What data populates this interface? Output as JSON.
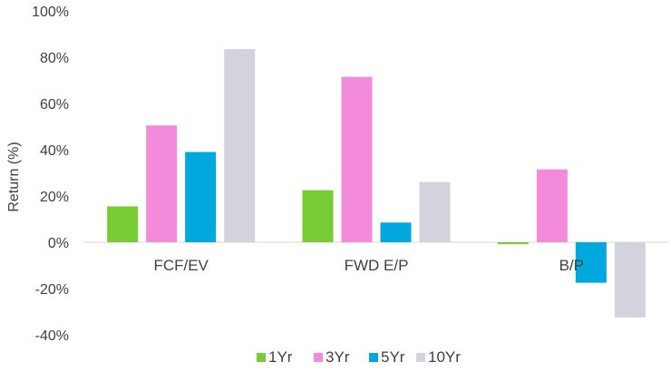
{
  "chart_data": {
    "type": "bar",
    "categories": [
      "FCF/EV",
      "FWD E/P",
      "B/P"
    ],
    "series": [
      {
        "name": "1Yr",
        "values": [
          15.5,
          22.5,
          -0.8
        ],
        "color": "#77cc33"
      },
      {
        "name": "3Yr",
        "values": [
          50.5,
          71.5,
          31.5
        ],
        "color": "#f48ada"
      },
      {
        "name": "5Yr",
        "values": [
          39,
          8.5,
          -17.5
        ],
        "color": "#00a8de"
      },
      {
        "name": "10Yr",
        "values": [
          83.5,
          26,
          -32.5
        ],
        "color": "#d3d3de"
      }
    ],
    "ylabel": "Return (%)",
    "ylim": [
      -40,
      100
    ],
    "yticks": [
      -40,
      -20,
      0,
      20,
      40,
      60,
      80,
      100
    ],
    "ytick_labels": [
      "-40%",
      "-20%",
      "0%",
      "20%",
      "40%",
      "60%",
      "80%",
      "100%"
    ],
    "grid": false,
    "legend_position": "bottom"
  }
}
